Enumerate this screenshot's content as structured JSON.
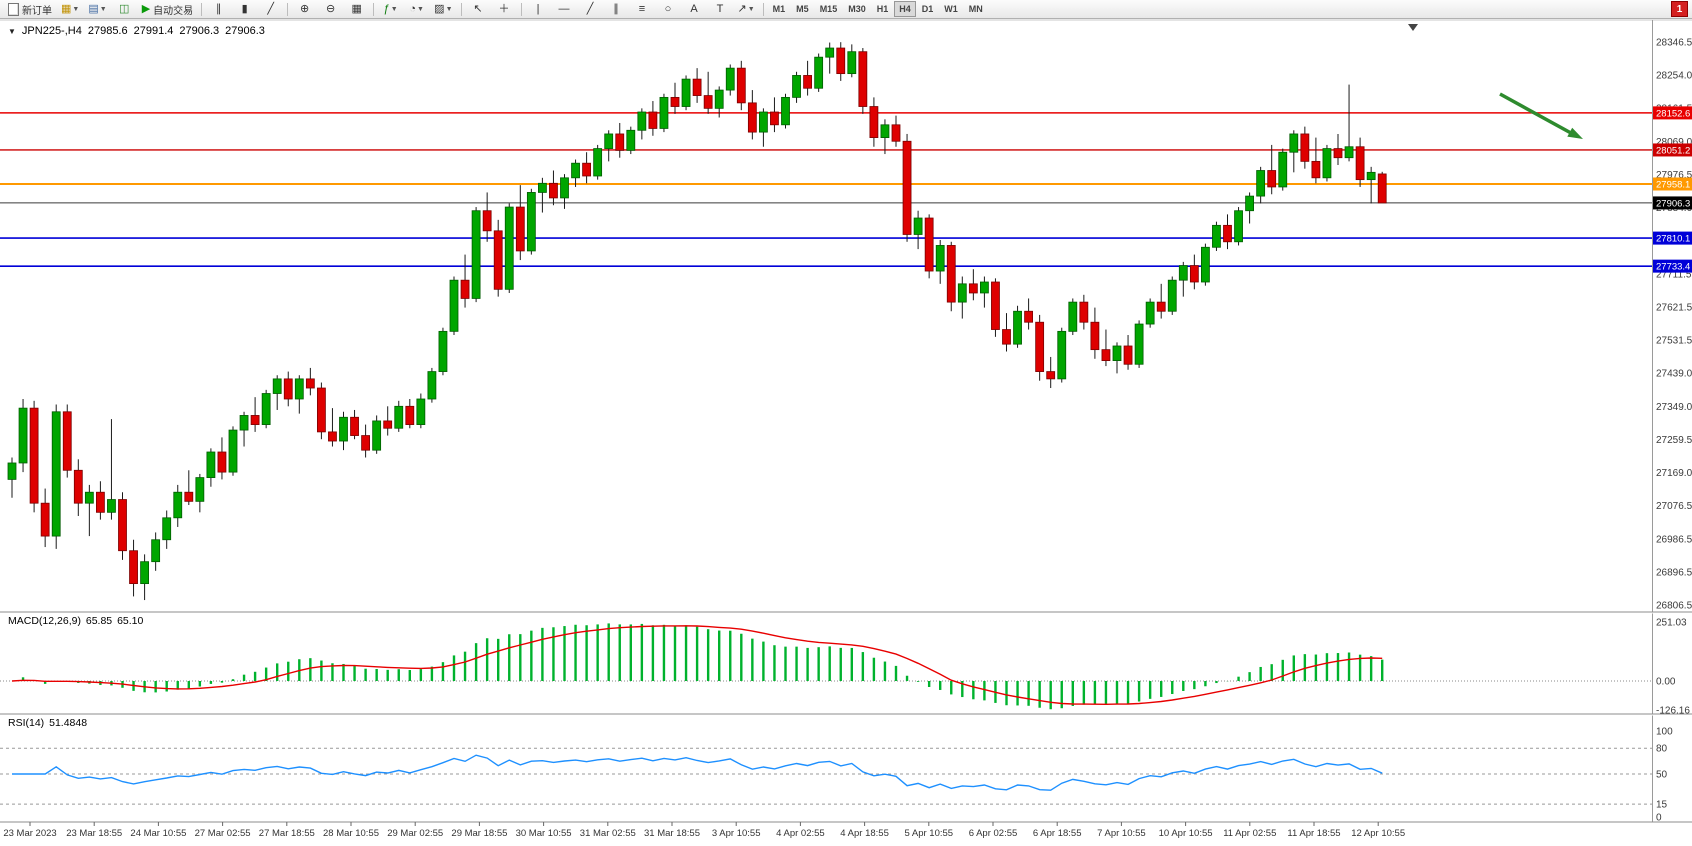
{
  "toolbar": {
    "new_order_label": "新订单",
    "autotrading_label": "自动交易",
    "timeframes": [
      "M1",
      "M5",
      "M15",
      "M30",
      "H1",
      "H4",
      "D1",
      "W1",
      "MN"
    ],
    "active_timeframe": "H4",
    "alert_count": "1",
    "icons": [
      "new-order-icon",
      "new-chart-icon",
      "profiles-icon",
      "data-window-icon",
      "autotrading-icon",
      "bar-chart-icon",
      "candlestick-chart-icon",
      "line-chart-icon",
      "zoom-in-icon",
      "zoom-out-icon",
      "tile-windows-icon",
      "indicators-icon",
      "periods-icon",
      "templates-icon",
      "cursor-icon",
      "crosshair-icon",
      "vertical-line-icon",
      "horizontal-line-icon",
      "trendline-icon",
      "channel-icon",
      "fibonacci-icon",
      "shapes-icon",
      "text-icon",
      "label-icon",
      "arrows-icon",
      "alert-icon"
    ]
  },
  "chart": {
    "symbol_period": "JPN225-,H4",
    "open": "27985.6",
    "high": "27991.4",
    "low": "27906.3",
    "close": "27906.3",
    "price_max": 28346.5,
    "price_min": 26806.5,
    "price_axis_labels": [
      "28346.5",
      "28254.0",
      "28161.5",
      "28069.0",
      "27976.5",
      "27884.0",
      "27791.5",
      "27711.5",
      "27621.5",
      "27531.5",
      "27439.0",
      "27349.0",
      "27259.5",
      "27169.0",
      "27076.5",
      "26986.5",
      "26896.5",
      "26806.5"
    ],
    "level_lines": [
      {
        "label": "28152.6",
        "price": 28152.6,
        "color": "#E80000",
        "badge_color": "#E80000",
        "thickness": 1.4
      },
      {
        "label": "28051.2",
        "price": 28051.2,
        "color": "#CC0000",
        "badge_color": "#CC0000",
        "thickness": 1.4
      },
      {
        "label": "27958.1",
        "price": 27958.1,
        "color": "#FF9900",
        "badge_color": "#FF9900",
        "thickness": 2
      },
      {
        "label": "27906.3",
        "price": 27906.3,
        "color": "#3a3a3a",
        "badge_color": "#000000",
        "thickness": 1
      },
      {
        "label": "27810.1",
        "price": 27810.1,
        "color": "#0000D8",
        "badge_color": "#0000D8",
        "thickness": 1.6
      },
      {
        "label": "27733.4",
        "price": 27733.4,
        "color": "#0000D8",
        "badge_color": "#0000D8",
        "thickness": 1.6
      }
    ],
    "colors": {
      "bull": "#00A600",
      "bear": "#DE0000",
      "bull_edge": "#005c00",
      "bear_edge": "#7a0000",
      "wick": "#1a1a1a",
      "arrow": "#2E8B2E"
    }
  },
  "chart_data": {
    "type": "candlestick",
    "symbol": "JPN225-",
    "period": "H4",
    "candles": [
      [
        27150,
        27210,
        27100,
        27195
      ],
      [
        27195,
        27370,
        27170,
        27345
      ],
      [
        27345,
        27365,
        27060,
        27085
      ],
      [
        27085,
        27125,
        26965,
        26995
      ],
      [
        26995,
        27355,
        26960,
        27335
      ],
      [
        27335,
        27355,
        27155,
        27175
      ],
      [
        27175,
        27205,
        27050,
        27085
      ],
      [
        27085,
        27135,
        26995,
        27115
      ],
      [
        27115,
        27145,
        27040,
        27060
      ],
      [
        27060,
        27315,
        27040,
        27095
      ],
      [
        27095,
        27115,
        26930,
        26955
      ],
      [
        26955,
        26985,
        26830,
        26865
      ],
      [
        26865,
        26945,
        26820,
        26925
      ],
      [
        26925,
        27005,
        26900,
        26985
      ],
      [
        26985,
        27065,
        26960,
        27045
      ],
      [
        27045,
        27135,
        27020,
        27115
      ],
      [
        27115,
        27175,
        27080,
        27090
      ],
      [
        27090,
        27165,
        27060,
        27155
      ],
      [
        27155,
        27235,
        27130,
        27225
      ],
      [
        27225,
        27265,
        27150,
        27170
      ],
      [
        27170,
        27295,
        27160,
        27285
      ],
      [
        27285,
        27335,
        27240,
        27325
      ],
      [
        27325,
        27375,
        27280,
        27300
      ],
      [
        27300,
        27395,
        27290,
        27385
      ],
      [
        27385,
        27435,
        27340,
        27425
      ],
      [
        27425,
        27445,
        27350,
        27370
      ],
      [
        27370,
        27435,
        27330,
        27425
      ],
      [
        27425,
        27455,
        27380,
        27400
      ],
      [
        27400,
        27415,
        27260,
        27280
      ],
      [
        27280,
        27345,
        27240,
        27255
      ],
      [
        27255,
        27335,
        27230,
        27320
      ],
      [
        27320,
        27340,
        27260,
        27270
      ],
      [
        27270,
        27300,
        27210,
        27230
      ],
      [
        27230,
        27325,
        27220,
        27310
      ],
      [
        27310,
        27350,
        27270,
        27290
      ],
      [
        27290,
        27365,
        27280,
        27350
      ],
      [
        27350,
        27370,
        27290,
        27300
      ],
      [
        27300,
        27385,
        27290,
        27370
      ],
      [
        27370,
        27455,
        27360,
        27445
      ],
      [
        27445,
        27565,
        27435,
        27555
      ],
      [
        27555,
        27705,
        27545,
        27695
      ],
      [
        27695,
        27765,
        27620,
        27645
      ],
      [
        27645,
        27895,
        27635,
        27885
      ],
      [
        27885,
        27935,
        27800,
        27830
      ],
      [
        27830,
        27860,
        27650,
        27670
      ],
      [
        27670,
        27905,
        27660,
        27895
      ],
      [
        27895,
        27955,
        27750,
        27775
      ],
      [
        27775,
        27945,
        27765,
        27935
      ],
      [
        27935,
        27975,
        27880,
        27960
      ],
      [
        27960,
        27995,
        27900,
        27920
      ],
      [
        27920,
        27985,
        27890,
        27975
      ],
      [
        27975,
        28025,
        27950,
        28015
      ],
      [
        28015,
        28045,
        27960,
        27980
      ],
      [
        27980,
        28065,
        27970,
        28055
      ],
      [
        28055,
        28105,
        28020,
        28095
      ],
      [
        28095,
        28125,
        28030,
        28050
      ],
      [
        28050,
        28115,
        28040,
        28105
      ],
      [
        28105,
        28165,
        28080,
        28155
      ],
      [
        28155,
        28185,
        28090,
        28110
      ],
      [
        28110,
        28205,
        28100,
        28195
      ],
      [
        28195,
        28235,
        28150,
        28170
      ],
      [
        28170,
        28255,
        28160,
        28245
      ],
      [
        28245,
        28275,
        28180,
        28200
      ],
      [
        28200,
        28265,
        28150,
        28165
      ],
      [
        28165,
        28225,
        28140,
        28215
      ],
      [
        28215,
        28285,
        28200,
        28275
      ],
      [
        28275,
        28295,
        28160,
        28180
      ],
      [
        28180,
        28215,
        28080,
        28100
      ],
      [
        28100,
        28165,
        28060,
        28155
      ],
      [
        28155,
        28195,
        28100,
        28120
      ],
      [
        28120,
        28205,
        28110,
        28195
      ],
      [
        28195,
        28265,
        28180,
        28255
      ],
      [
        28255,
        28295,
        28200,
        28220
      ],
      [
        28220,
        28315,
        28210,
        28305
      ],
      [
        28305,
        28345,
        28260,
        28330
      ],
      [
        28330,
        28346,
        28240,
        28260
      ],
      [
        28260,
        28340,
        28250,
        28320
      ],
      [
        28320,
        28330,
        28150,
        28170
      ],
      [
        28170,
        28195,
        28060,
        28085
      ],
      [
        28085,
        28135,
        28040,
        28120
      ],
      [
        28120,
        28145,
        28060,
        28075
      ],
      [
        28075,
        28095,
        27800,
        27820
      ],
      [
        27820,
        27885,
        27780,
        27865
      ],
      [
        27865,
        27875,
        27700,
        27720
      ],
      [
        27720,
        27805,
        27685,
        27790
      ],
      [
        27790,
        27800,
        27610,
        27635
      ],
      [
        27635,
        27705,
        27590,
        27685
      ],
      [
        27685,
        27725,
        27640,
        27660
      ],
      [
        27660,
        27705,
        27620,
        27690
      ],
      [
        27690,
        27700,
        27540,
        27560
      ],
      [
        27560,
        27605,
        27500,
        27520
      ],
      [
        27520,
        27625,
        27510,
        27610
      ],
      [
        27610,
        27645,
        27560,
        27580
      ],
      [
        27580,
        27600,
        27420,
        27445
      ],
      [
        27445,
        27485,
        27400,
        27425
      ],
      [
        27425,
        27565,
        27415,
        27555
      ],
      [
        27555,
        27645,
        27545,
        27635
      ],
      [
        27635,
        27655,
        27560,
        27580
      ],
      [
        27580,
        27620,
        27480,
        27505
      ],
      [
        27505,
        27560,
        27460,
        27475
      ],
      [
        27475,
        27525,
        27440,
        27515
      ],
      [
        27515,
        27545,
        27450,
        27465
      ],
      [
        27465,
        27585,
        27455,
        27575
      ],
      [
        27575,
        27645,
        27565,
        27635
      ],
      [
        27635,
        27685,
        27590,
        27610
      ],
      [
        27610,
        27705,
        27600,
        27695
      ],
      [
        27695,
        27745,
        27650,
        27735
      ],
      [
        27735,
        27765,
        27670,
        27690
      ],
      [
        27690,
        27795,
        27680,
        27785
      ],
      [
        27785,
        27855,
        27775,
        27845
      ],
      [
        27845,
        27875,
        27780,
        27800
      ],
      [
        27800,
        27895,
        27790,
        27885
      ],
      [
        27885,
        27935,
        27850,
        27925
      ],
      [
        27925,
        28005,
        27905,
        27995
      ],
      [
        27995,
        28065,
        27930,
        27950
      ],
      [
        27950,
        28055,
        27940,
        28045
      ],
      [
        28045,
        28105,
        27990,
        28095
      ],
      [
        28095,
        28115,
        28000,
        28020
      ],
      [
        28020,
        28085,
        27960,
        27975
      ],
      [
        27975,
        28065,
        27965,
        28055
      ],
      [
        28055,
        28095,
        28010,
        28030
      ],
      [
        28030,
        28230,
        28020,
        28060
      ],
      [
        28060,
        28085,
        27950,
        27970
      ],
      [
        27970,
        28005,
        27905,
        27990
      ],
      [
        27985.6,
        27991.4,
        27906.3,
        27906.3
      ]
    ],
    "time_labels": [
      "23 Mar 2023",
      "23 Mar 18:55",
      "24 Mar 10:55",
      "27 Mar 02:55",
      "27 Mar 18:55",
      "28 Mar 10:55",
      "29 Mar 02:55",
      "29 Mar 18:55",
      "30 Mar 10:55",
      "31 Mar 02:55",
      "31 Mar 18:55",
      "3 Apr 10:55",
      "4 Apr 02:55",
      "4 Apr 18:55",
      "5 Apr 10:55",
      "6 Apr 02:55",
      "6 Apr 18:55",
      "7 Apr 10:55",
      "10 Apr 10:55",
      "11 Apr 02:55",
      "11 Apr 18:55",
      "12 Apr 10:55"
    ]
  },
  "macd": {
    "title": "MACD(12,26,9)",
    "value_main": "65.85",
    "value_signal": "65.10",
    "params": {
      "fast": 12,
      "slow": 26,
      "signal": 9
    },
    "axis_labels": [
      "251.03",
      "0.00",
      "-126.16"
    ],
    "axis_max": 251.03,
    "axis_min": -126.16,
    "histogram_color": "#00B22D",
    "signal_color": "#E80000"
  },
  "rsi": {
    "title": "RSI(14)",
    "value": "51.4848",
    "period": 14,
    "axis_labels": [
      "100",
      "80",
      "50",
      "15",
      "0"
    ],
    "levels": [
      80,
      50,
      15
    ],
    "line_color": "#1E90FF"
  }
}
